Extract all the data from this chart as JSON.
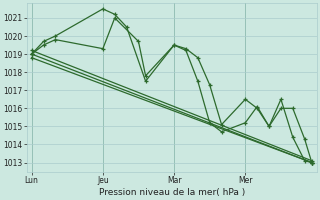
{
  "background_color": "#cce8e0",
  "grid_color": "#aacccc",
  "line_color": "#2d6a2d",
  "marker": "+",
  "xlabel": "Pression niveau de la mer( hPa )",
  "ylim": [
    1012.5,
    1021.8
  ],
  "yticks": [
    1013,
    1014,
    1015,
    1016,
    1017,
    1018,
    1019,
    1020,
    1021
  ],
  "xtick_labels": [
    "Lun",
    "Jeu",
    "Mar",
    "Mer"
  ],
  "vline_x": [
    0,
    30,
    60,
    90
  ],
  "series": [
    {
      "x": [
        0,
        5,
        10,
        30,
        35,
        40,
        48,
        60,
        65,
        70,
        75,
        80,
        90,
        95,
        100,
        105,
        110,
        115,
        118
      ],
      "y": [
        1019.0,
        1019.7,
        1020.0,
        1021.5,
        1021.2,
        1020.5,
        1017.5,
        1019.5,
        1019.3,
        1018.8,
        1017.3,
        1015.1,
        1016.5,
        1016.0,
        1015.0,
        1016.5,
        1014.4,
        1013.1,
        1013.0
      ]
    },
    {
      "x": [
        0,
        118
      ],
      "y": [
        1019.0,
        1013.0
      ]
    },
    {
      "x": [
        0,
        118
      ],
      "y": [
        1018.8,
        1013.0
      ]
    },
    {
      "x": [
        0,
        118
      ],
      "y": [
        1019.2,
        1013.1
      ]
    },
    {
      "x": [
        0,
        5,
        10,
        30,
        35,
        45,
        48,
        60,
        65,
        70,
        75,
        80,
        90,
        95,
        100,
        105,
        110,
        115,
        118
      ],
      "y": [
        1019.0,
        1019.5,
        1019.8,
        1019.3,
        1021.0,
        1019.7,
        1017.8,
        1019.5,
        1019.2,
        1017.5,
        1015.2,
        1014.7,
        1015.2,
        1016.1,
        1015.0,
        1016.0,
        1016.0,
        1014.3,
        1013.0
      ]
    }
  ],
  "xlim": [
    -2,
    120
  ],
  "xtick_x": [
    0,
    30,
    60,
    90
  ]
}
